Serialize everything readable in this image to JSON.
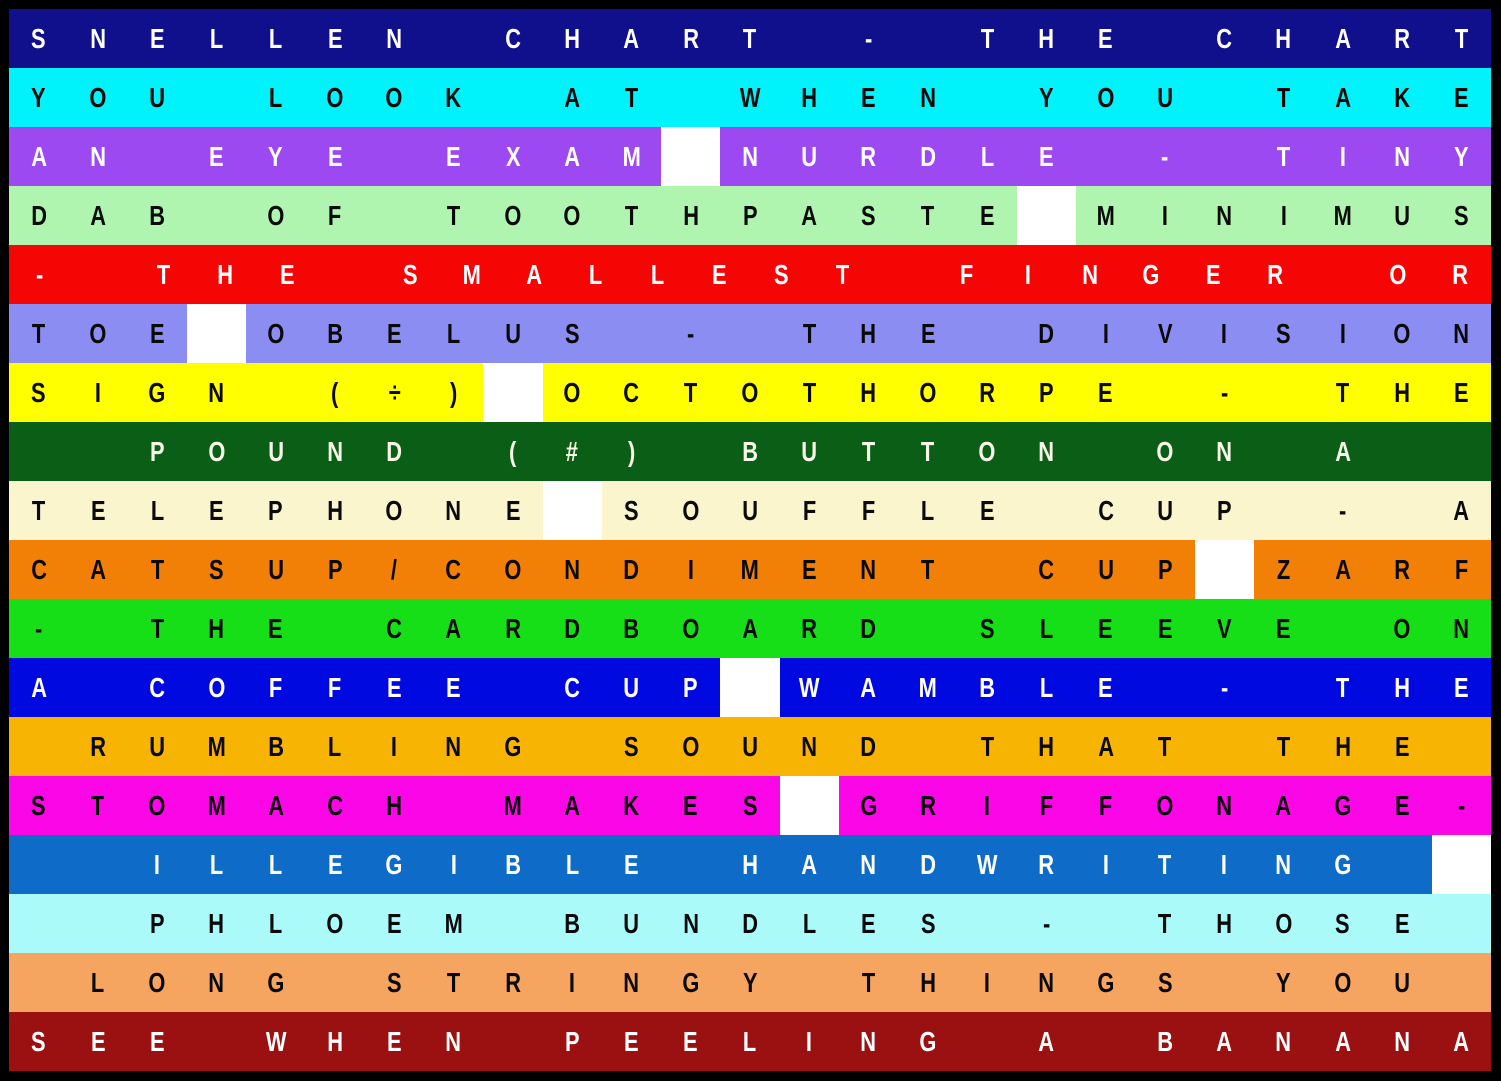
{
  "poster": {
    "white_cell_token": "|",
    "frame_color": "#000000",
    "separator_color": "#FFFFFF",
    "rows": [
      {
        "bg": "#10108C",
        "fg": "#FFFFFF",
        "cells": "SNELLEN CHART - THE CHART"
      },
      {
        "bg": "#00F2FA",
        "fg": "#0A0A0A",
        "cells": "YOU LOOK AT WHEN YOU TAKE"
      },
      {
        "bg": "#9D49F2",
        "fg": "#FFFFFF",
        "cells": "AN EYE EXAM|NURDLE - TINY"
      },
      {
        "bg": "#AFF5AF",
        "fg": "#0A0A0A",
        "cells": "DAB OF TOOTHPASTE|MINIMUS"
      },
      {
        "bg": "#F60505",
        "fg": "#FFFFFF",
        "cells": "- THE SMALLEST FINGER OR"
      },
      {
        "bg": "#8C8DF2",
        "fg": "#0A0A0A",
        "cells": "TOE|OBELUS - THE DIVISION"
      },
      {
        "bg": "#FFFF00",
        "fg": "#0A0A0A",
        "cells": "SIGN (÷)|OCTOTHORPE - THE"
      },
      {
        "bg": "#0A5E15",
        "fg": "#F8F8E8",
        "cells": "  POUND (#) BUTTON ON A  "
      },
      {
        "bg": "#FBF5CD",
        "fg": "#0A0A0A",
        "cells": "TELEPHONE|SOUFFLE CUP - A"
      },
      {
        "bg": "#F28007",
        "fg": "#0A0A0A",
        "cells": "CATSUP/CONDIMENT CUP|ZARF"
      },
      {
        "bg": "#17DF17",
        "fg": "#0A0A0A",
        "cells": "- THE CARDBOARD SLEEVE ON"
      },
      {
        "bg": "#0009E0",
        "fg": "#FFFFFF",
        "cells": "A COFFEE CUP|WAMBLE - THE"
      },
      {
        "bg": "#F7B402",
        "fg": "#0A0A0A",
        "cells": " RUMBLING SOUND THAT THE "
      },
      {
        "bg": "#FB06E6",
        "fg": "#0A0A0A",
        "cells": "STOMACH MAKES|GRIFFONAGE-"
      },
      {
        "bg": "#0E6CC8",
        "fg": "#FFFFFF",
        "cells": "  ILLEGIBLE HANDWRITING |"
      },
      {
        "bg": "#ABFAFA",
        "fg": "#0A0A0A",
        "cells": "  PHLOEM BUNDLES - THOSE "
      },
      {
        "bg": "#F5A55F",
        "fg": "#0A0A0A",
        "cells": " LONG STRINGY THINGS YOU "
      },
      {
        "bg": "#9B1010",
        "fg": "#FFFFFF",
        "cells": "SEE WHEN PEELING A BANANA"
      }
    ],
    "full_text": "SNELLEN CHART - THE CHART YOU LOOK AT WHEN YOU TAKE AN EYE EXAM ■ NURDLE - TINY DAB OF TOOTHPASTE ■ MINIMUS - THE SMALLEST FINGER OR TOE ■ OBELUS - THE DIVISION SIGN (÷) ■ OCTOTHORPE - THE POUND (#) BUTTON ON A TELEPHONE ■ SOUFFLE CUP - A CATSUP/CONDIMENT CUP ■ ZARF - THE CARDBOARD SLEEVE ON A COFFEE CUP ■ WAMBLE - THE RUMBLING SOUND THAT THE STOMACH MAKES ■ GRIFFONAGE - ILLEGIBLE HANDWRITING ■ PHLOEM BUNDLES - THOSE LONG STRINGY THINGS YOU SEE WHEN PEELING A BANANA"
  }
}
